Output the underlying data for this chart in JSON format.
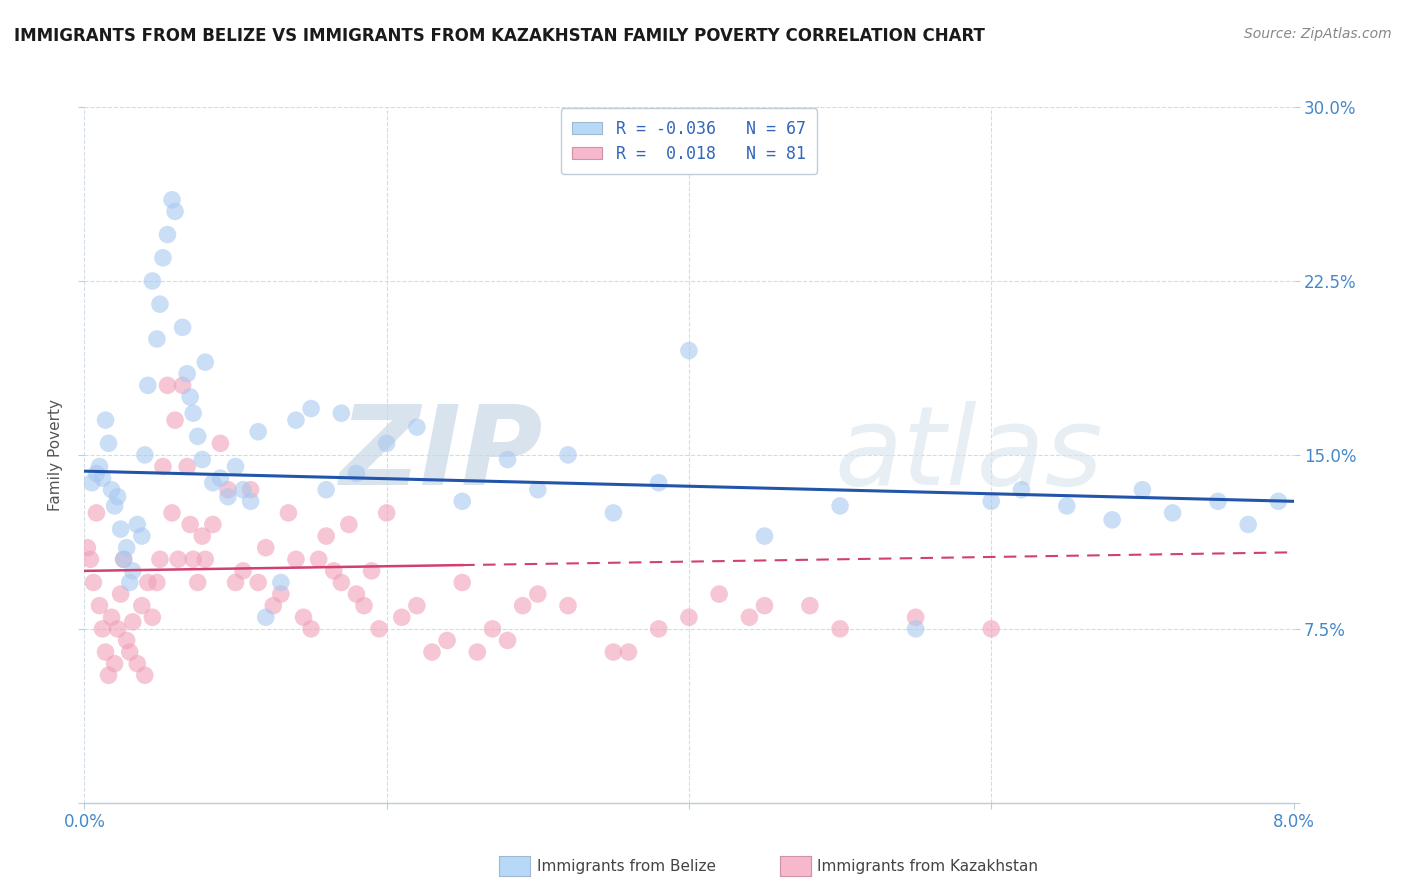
{
  "title": "IMMIGRANTS FROM BELIZE VS IMMIGRANTS FROM KAZAKHSTAN FAMILY POVERTY CORRELATION CHART",
  "source": "Source: ZipAtlas.com",
  "ylabel": "Family Poverty",
  "xlim": [
    0.0,
    8.0
  ],
  "ylim": [
    0.0,
    30.0
  ],
  "xticks": [
    0.0,
    2.0,
    4.0,
    6.0,
    8.0
  ],
  "yticks": [
    0.0,
    7.5,
    15.0,
    22.5,
    30.0
  ],
  "series_belize": {
    "label": "Immigrants from Belize",
    "R": -0.036,
    "N": 67,
    "color": "#a8c8f0",
    "trend_color": "#2255aa",
    "trend_style": "solid",
    "x": [
      0.05,
      0.08,
      0.1,
      0.12,
      0.14,
      0.16,
      0.18,
      0.2,
      0.22,
      0.24,
      0.26,
      0.28,
      0.3,
      0.32,
      0.35,
      0.38,
      0.4,
      0.42,
      0.45,
      0.48,
      0.5,
      0.52,
      0.55,
      0.58,
      0.6,
      0.65,
      0.68,
      0.7,
      0.72,
      0.75,
      0.78,
      0.8,
      0.85,
      0.9,
      0.95,
      1.0,
      1.05,
      1.1,
      1.15,
      1.2,
      1.3,
      1.4,
      1.5,
      1.6,
      1.7,
      1.8,
      2.0,
      2.2,
      2.5,
      2.8,
      3.0,
      3.2,
      3.5,
      3.8,
      4.0,
      4.5,
      5.0,
      5.5,
      6.0,
      6.2,
      6.5,
      6.8,
      7.0,
      7.2,
      7.5,
      7.7,
      7.9
    ],
    "y": [
      13.8,
      14.2,
      14.5,
      14.0,
      16.5,
      15.5,
      13.5,
      12.8,
      13.2,
      11.8,
      10.5,
      11.0,
      9.5,
      10.0,
      12.0,
      11.5,
      15.0,
      18.0,
      22.5,
      20.0,
      21.5,
      23.5,
      24.5,
      26.0,
      25.5,
      20.5,
      18.5,
      17.5,
      16.8,
      15.8,
      14.8,
      19.0,
      13.8,
      14.0,
      13.2,
      14.5,
      13.5,
      13.0,
      16.0,
      8.0,
      9.5,
      16.5,
      17.0,
      13.5,
      16.8,
      14.2,
      15.5,
      16.2,
      13.0,
      14.8,
      13.5,
      15.0,
      12.5,
      13.8,
      19.5,
      11.5,
      12.8,
      7.5,
      13.0,
      13.5,
      12.8,
      12.2,
      13.5,
      12.5,
      13.0,
      12.0,
      13.0
    ],
    "trend_x0": 0.0,
    "trend_x1": 8.0,
    "trend_y0": 14.3,
    "trend_y1": 13.0
  },
  "series_kazakhstan": {
    "label": "Immigrants from Kazakhstan",
    "R": 0.018,
    "N": 81,
    "color": "#f0a0b8",
    "trend_color": "#d04070",
    "trend_solid_x0": 0.0,
    "trend_solid_x1": 2.5,
    "trend_dashed_x0": 2.5,
    "trend_dashed_x1": 8.0,
    "trend_y0": 10.0,
    "trend_y1": 10.8,
    "x": [
      0.02,
      0.04,
      0.06,
      0.08,
      0.1,
      0.12,
      0.14,
      0.16,
      0.18,
      0.2,
      0.22,
      0.24,
      0.26,
      0.28,
      0.3,
      0.32,
      0.35,
      0.38,
      0.4,
      0.42,
      0.45,
      0.48,
      0.5,
      0.52,
      0.55,
      0.58,
      0.6,
      0.62,
      0.65,
      0.68,
      0.7,
      0.72,
      0.75,
      0.78,
      0.8,
      0.85,
      0.9,
      0.95,
      1.0,
      1.05,
      1.1,
      1.15,
      1.2,
      1.25,
      1.3,
      1.35,
      1.4,
      1.45,
      1.5,
      1.55,
      1.6,
      1.65,
      1.7,
      1.75,
      1.8,
      1.85,
      1.9,
      1.95,
      2.0,
      2.1,
      2.2,
      2.3,
      2.4,
      2.5,
      2.6,
      2.7,
      2.8,
      2.9,
      3.0,
      3.2,
      3.5,
      3.6,
      3.8,
      4.0,
      4.2,
      4.4,
      4.5,
      4.8,
      5.0,
      5.5,
      6.0
    ],
    "y": [
      11.0,
      10.5,
      9.5,
      12.5,
      8.5,
      7.5,
      6.5,
      5.5,
      8.0,
      6.0,
      7.5,
      9.0,
      10.5,
      7.0,
      6.5,
      7.8,
      6.0,
      8.5,
      5.5,
      9.5,
      8.0,
      9.5,
      10.5,
      14.5,
      18.0,
      12.5,
      16.5,
      10.5,
      18.0,
      14.5,
      12.0,
      10.5,
      9.5,
      11.5,
      10.5,
      12.0,
      15.5,
      13.5,
      9.5,
      10.0,
      13.5,
      9.5,
      11.0,
      8.5,
      9.0,
      12.5,
      10.5,
      8.0,
      7.5,
      10.5,
      11.5,
      10.0,
      9.5,
      12.0,
      9.0,
      8.5,
      10.0,
      7.5,
      12.5,
      8.0,
      8.5,
      6.5,
      7.0,
      9.5,
      6.5,
      7.5,
      7.0,
      8.5,
      9.0,
      8.5,
      6.5,
      6.5,
      7.5,
      8.0,
      9.0,
      8.0,
      8.5,
      8.5,
      7.5,
      8.0,
      7.5
    ]
  },
  "legend_box_color_belize": "#b8d8f8",
  "legend_box_color_kazakhstan": "#f8b8cc",
  "watermark_zip": "ZIP",
  "watermark_atlas": "atlas",
  "background_color": "#ffffff",
  "grid_color": "#d0dce8",
  "title_color": "#1a1a1a",
  "tick_label_color": "#4488cc",
  "right_tick_color": "#4488cc"
}
